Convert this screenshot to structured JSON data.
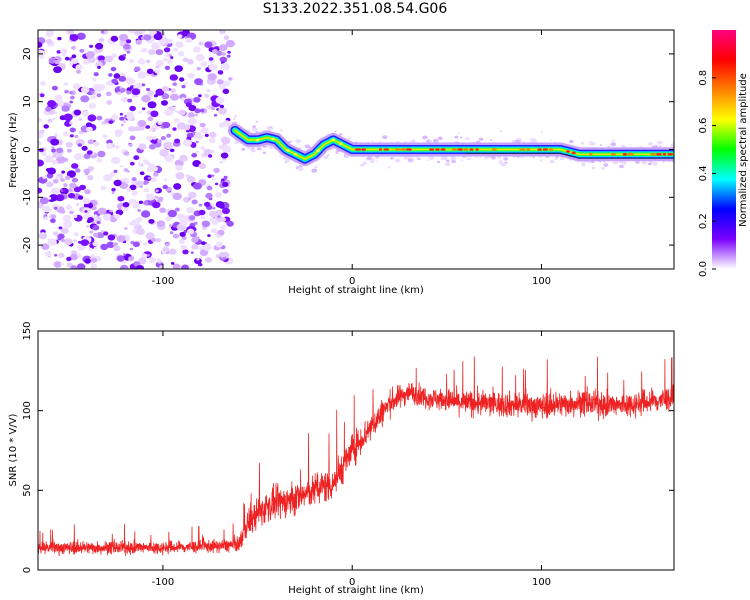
{
  "title": "S133.2022.351.08.54.G06",
  "chart_data": [
    {
      "type": "heatmap",
      "xlabel": "Height of straight line (km)",
      "ylabel": "Frequency (Hz)",
      "xlim": [
        -166,
        170
      ],
      "ylim": [
        -25,
        25
      ],
      "xticks": [
        -100,
        0,
        100
      ],
      "yticks": [
        -20,
        -10,
        0,
        10,
        20
      ],
      "colorbar": {
        "label": "Normalized spectral amplitude",
        "range": [
          0.0,
          1.0
        ],
        "ticks": [
          "0.0",
          "0.2",
          "0.4",
          "0.6",
          "0.8"
        ],
        "colors": [
          "#ffffff",
          "#7a00ff",
          "#0000ff",
          "#00ffff",
          "#00ff00",
          "#ffff00",
          "#ff8000",
          "#ff0000",
          "#ff0080"
        ]
      },
      "signal_frequency_track": {
        "height_km": [
          -62,
          -55,
          -50,
          -45,
          -40,
          -35,
          -30,
          -25,
          -20,
          -15,
          -10,
          -5,
          0,
          10,
          20,
          40,
          60,
          80,
          100,
          110,
          120,
          140,
          160,
          170
        ],
        "frequency_hz": [
          4,
          2,
          2,
          2.5,
          2,
          0,
          -1,
          -2,
          -1,
          1,
          2,
          1,
          0,
          0,
          0,
          0,
          0,
          0,
          0,
          0,
          -1,
          -1,
          -1,
          -1
        ]
      },
      "noise_region_km": [
        -166,
        -64
      ]
    },
    {
      "type": "line",
      "xlabel": "Height of straight line (km)",
      "ylabel": "SNR (10 * V/V)",
      "xlim": [
        -166,
        170
      ],
      "ylim": [
        0,
        150
      ],
      "xticks": [
        -100,
        0,
        100
      ],
      "yticks": [
        0,
        50,
        100,
        150
      ],
      "color": "#ee2222",
      "series_envelope": {
        "height_km": [
          -166,
          -140,
          -100,
          -70,
          -60,
          -55,
          -45,
          -30,
          -20,
          -10,
          0,
          10,
          20,
          30,
          40,
          60,
          80,
          100,
          120,
          140,
          160,
          170
        ],
        "snr_mean": [
          14,
          14,
          14,
          15,
          16,
          30,
          40,
          45,
          50,
          55,
          75,
          90,
          105,
          112,
          108,
          105,
          104,
          103,
          105,
          103,
          106,
          108
        ],
        "snr_spread": [
          6,
          6,
          6,
          6,
          7,
          15,
          15,
          15,
          15,
          18,
          15,
          14,
          12,
          10,
          10,
          12,
          12,
          12,
          12,
          12,
          12,
          12
        ]
      }
    }
  ]
}
